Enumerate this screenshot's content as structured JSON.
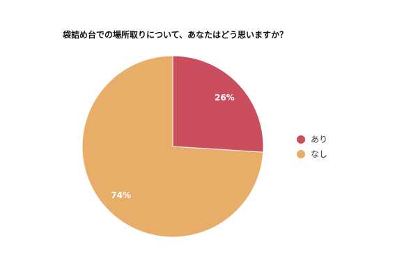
{
  "chart_data": {
    "type": "pie",
    "title": "袋詰め台での場所取りについて、あなたはどう思いますか？",
    "categories": [
      "あり",
      "なし"
    ],
    "values": [
      26,
      74
    ],
    "data_labels": [
      "26%",
      "74%"
    ],
    "colors": [
      "#cb4e5e",
      "#e8ad68"
    ],
    "legend_position": "right"
  }
}
